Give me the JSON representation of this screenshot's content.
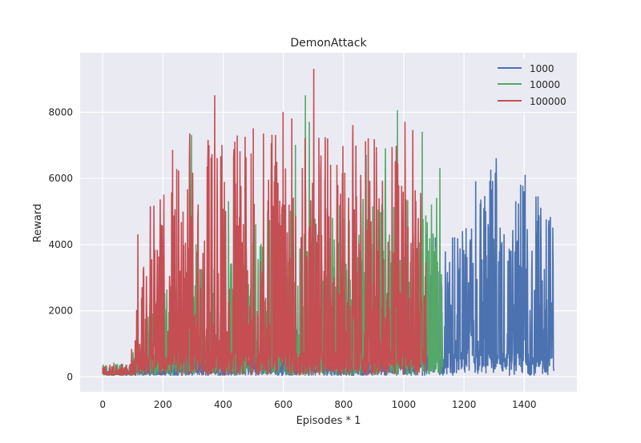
{
  "chart_data": {
    "type": "line",
    "title": "DemonAttack",
    "xlabel": "Episodes * 1",
    "ylabel": "Reward",
    "xlim": [
      -75,
      1575
    ],
    "ylim": [
      -450,
      9800
    ],
    "xticks": [
      0,
      200,
      400,
      600,
      800,
      1000,
      1200,
      1400
    ],
    "yticks": [
      0,
      2000,
      4000,
      6000,
      8000
    ],
    "grid": true,
    "legend_position": "top-right",
    "series": [
      {
        "name": "1000",
        "color": "#4C72B0",
        "episodes": 1500,
        "envelope": [
          [
            0,
            280
          ],
          [
            100,
            300
          ],
          [
            150,
            500
          ],
          [
            250,
            700
          ],
          [
            350,
            900
          ],
          [
            450,
            1100
          ],
          [
            550,
            1250
          ],
          [
            650,
            1500
          ],
          [
            700,
            1400
          ],
          [
            800,
            900
          ],
          [
            900,
            800
          ],
          [
            1000,
            1200
          ],
          [
            1050,
            1500
          ],
          [
            1100,
            3500
          ],
          [
            1150,
            4100
          ],
          [
            1200,
            4400
          ],
          [
            1250,
            5900
          ],
          [
            1300,
            6600
          ],
          [
            1350,
            4300
          ],
          [
            1400,
            6100
          ],
          [
            1450,
            5400
          ],
          [
            1500,
            4800
          ]
        ],
        "peaks": [
          [
            1105,
            4200
          ],
          [
            1162,
            4200
          ],
          [
            1196,
            3600
          ],
          [
            1215,
            2850
          ],
          [
            1239,
            5900
          ],
          [
            1272,
            5000
          ],
          [
            1284,
            2850
          ],
          [
            1307,
            6600
          ],
          [
            1320,
            4500
          ],
          [
            1333,
            4300
          ],
          [
            1346,
            3500
          ],
          [
            1372,
            5300
          ],
          [
            1388,
            5800
          ],
          [
            1403,
            6100
          ],
          [
            1425,
            3200
          ],
          [
            1441,
            3750
          ],
          [
            1455,
            5100
          ],
          [
            1467,
            3250
          ],
          [
            1473,
            4750
          ],
          [
            1483,
            4100
          ],
          [
            1496,
            3300
          ]
        ]
      },
      {
        "name": "10000",
        "color": "#55A868",
        "episodes": 1130,
        "envelope": [
          [
            0,
            350
          ],
          [
            80,
            400
          ],
          [
            120,
            1000
          ],
          [
            150,
            2100
          ],
          [
            200,
            2500
          ],
          [
            300,
            3200
          ],
          [
            400,
            3600
          ],
          [
            500,
            4300
          ],
          [
            600,
            5000
          ],
          [
            700,
            5200
          ],
          [
            800,
            5200
          ],
          [
            900,
            5400
          ],
          [
            1000,
            5400
          ],
          [
            1050,
            5000
          ],
          [
            1100,
            4700
          ],
          [
            1130,
            3000
          ]
        ],
        "peaks": [
          [
            146,
            2050
          ],
          [
            204,
            2300
          ],
          [
            220,
            1950
          ],
          [
            286,
            2500
          ],
          [
            295,
            7300
          ],
          [
            310,
            4000
          ],
          [
            418,
            5300
          ],
          [
            508,
            4600
          ],
          [
            548,
            5000
          ],
          [
            560,
            6200
          ],
          [
            589,
            4900
          ],
          [
            640,
            7000
          ],
          [
            673,
            8500
          ],
          [
            686,
            7700
          ],
          [
            738,
            6000
          ],
          [
            875,
            6700
          ],
          [
            939,
            6900
          ],
          [
            979,
            8050
          ],
          [
            1061,
            7400
          ],
          [
            1081,
            3800
          ],
          [
            1092,
            5200
          ],
          [
            1109,
            5400
          ],
          [
            1120,
            6300
          ]
        ]
      },
      {
        "name": "100000",
        "color": "#C44E52",
        "episodes": 1075,
        "envelope": [
          [
            0,
            300
          ],
          [
            90,
            350
          ],
          [
            105,
            1500
          ],
          [
            115,
            4300
          ],
          [
            130,
            2700
          ],
          [
            150,
            5100
          ],
          [
            200,
            5400
          ],
          [
            250,
            6400
          ],
          [
            300,
            6800
          ],
          [
            350,
            7200
          ],
          [
            400,
            6900
          ],
          [
            450,
            7300
          ],
          [
            500,
            7100
          ],
          [
            550,
            7500
          ],
          [
            600,
            7700
          ],
          [
            650,
            7600
          ],
          [
            700,
            7600
          ],
          [
            750,
            7200
          ],
          [
            800,
            7300
          ],
          [
            850,
            7200
          ],
          [
            900,
            7200
          ],
          [
            950,
            7300
          ],
          [
            1000,
            7500
          ],
          [
            1050,
            6500
          ],
          [
            1075,
            5600
          ]
        ],
        "peaks": [
          [
            117,
            4300
          ],
          [
            131,
            2700
          ],
          [
            158,
            5150
          ],
          [
            203,
            5500
          ],
          [
            232,
            6850
          ],
          [
            289,
            7350
          ],
          [
            350,
            7150
          ],
          [
            372,
            8500
          ],
          [
            396,
            7000
          ],
          [
            439,
            7100
          ],
          [
            473,
            7250
          ],
          [
            500,
            7500
          ],
          [
            574,
            7300
          ],
          [
            599,
            8000
          ],
          [
            628,
            7800
          ],
          [
            672,
            7200
          ],
          [
            701,
            9300
          ],
          [
            747,
            7200
          ],
          [
            831,
            7600
          ],
          [
            882,
            7200
          ],
          [
            1004,
            7700
          ],
          [
            1030,
            7450
          ]
        ]
      }
    ]
  }
}
